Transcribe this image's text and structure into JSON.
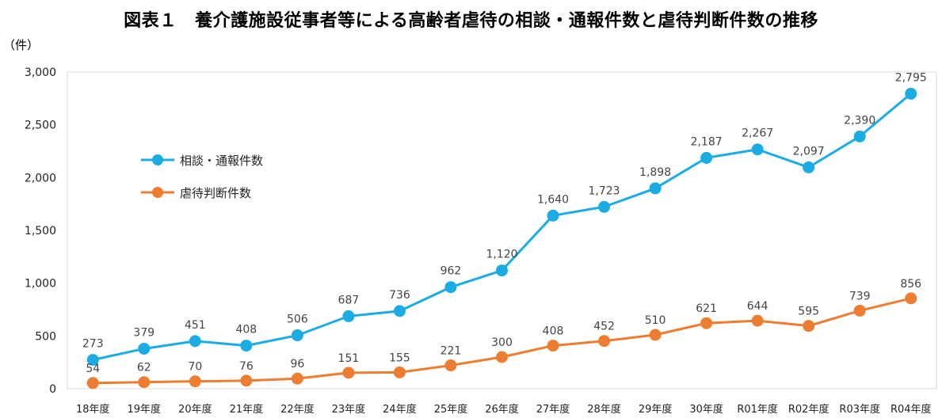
{
  "chart_data": {
    "type": "line",
    "title": "図表１　養介護施設従事者等による高齢者虐待の相談・通報件数と虐待判断件数の推移",
    "ylabel": "（件）",
    "xlabel": "",
    "ylim": [
      0,
      3000
    ],
    "yticks": [
      0,
      500,
      1000,
      1500,
      2000,
      2500,
      3000
    ],
    "ytick_labels": [
      "0",
      "500",
      "1,000",
      "1,500",
      "2,000",
      "2,500",
      "3,000"
    ],
    "grid": false,
    "legend_position": "upper-left",
    "categories": [
      "18年度",
      "19年度",
      "20年度",
      "21年度",
      "22年度",
      "23年度",
      "24年度",
      "25年度",
      "26年度",
      "27年度",
      "28年度",
      "29年度",
      "30年度",
      "R01年度",
      "R02年度",
      "R03年度",
      "R04年度"
    ],
    "series": [
      {
        "name": "相談・通報件数",
        "color": "#1AACE3",
        "values": [
          273,
          379,
          451,
          408,
          506,
          687,
          736,
          962,
          1120,
          1640,
          1723,
          1898,
          2187,
          2267,
          2097,
          2390,
          2795
        ],
        "labels": [
          "273",
          "379",
          "451",
          "408",
          "506",
          "687",
          "736",
          "962",
          "1,120",
          "1,640",
          "1,723",
          "1,898",
          "2,187",
          "2,267",
          "2,097",
          "2,390",
          "2,795"
        ]
      },
      {
        "name": "虐待判断件数",
        "color": "#ED7D31",
        "values": [
          54,
          62,
          70,
          76,
          96,
          151,
          155,
          221,
          300,
          408,
          452,
          510,
          621,
          644,
          595,
          739,
          856
        ],
        "labels": [
          "54",
          "62",
          "70",
          "76",
          "96",
          "151",
          "155",
          "221",
          "300",
          "408",
          "452",
          "510",
          "621",
          "644",
          "595",
          "739",
          "856"
        ]
      }
    ]
  }
}
